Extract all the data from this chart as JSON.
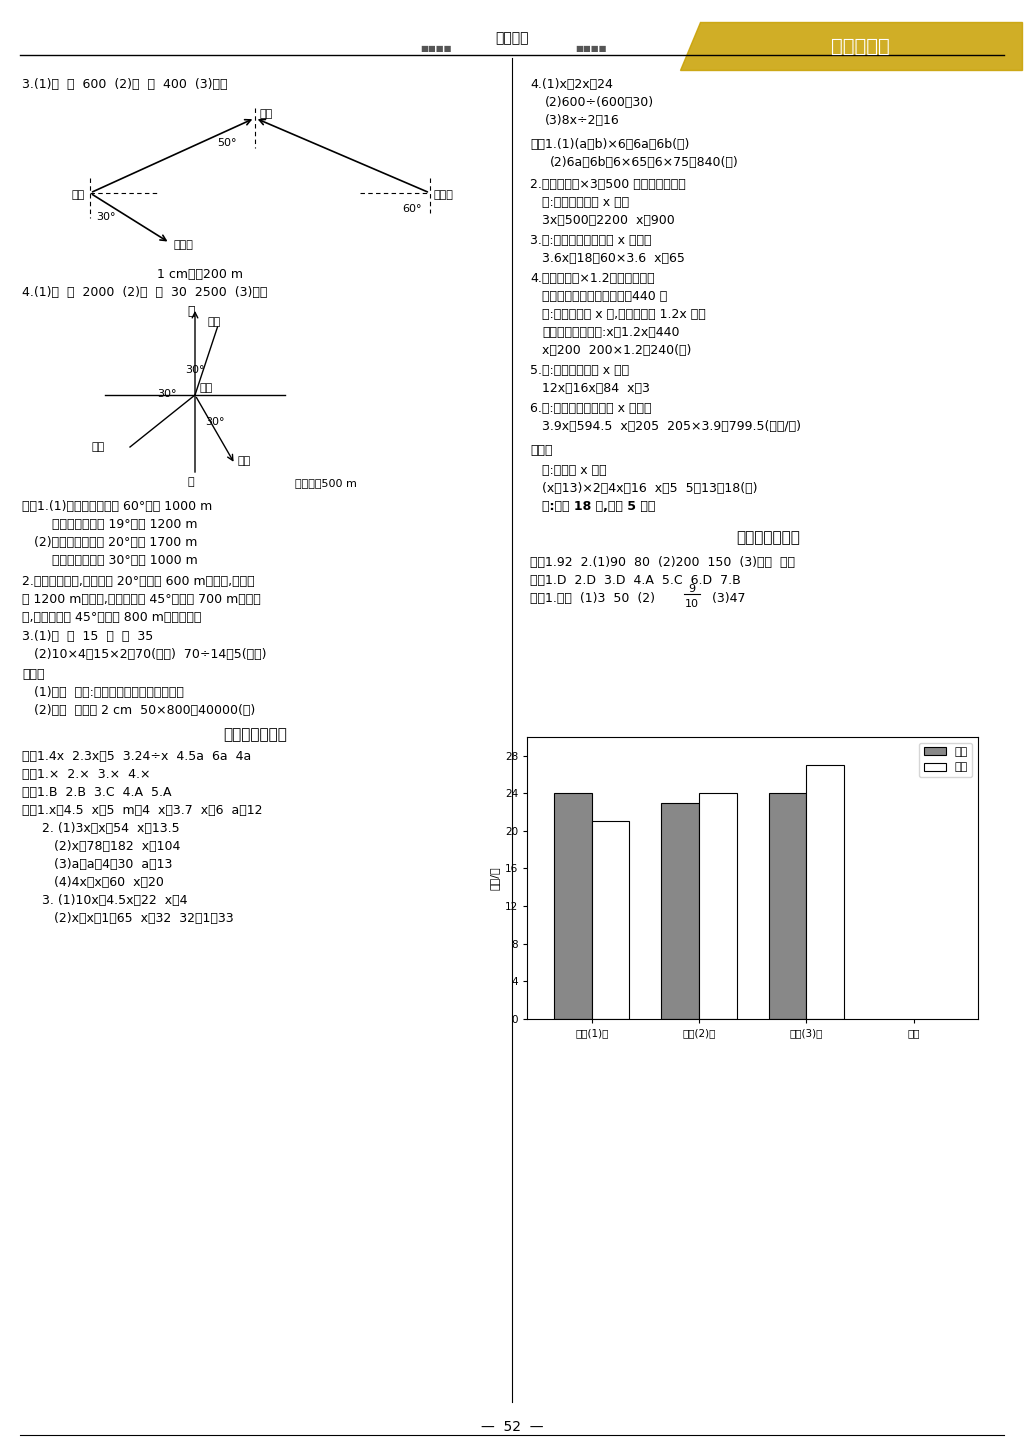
{
  "page_num": "52",
  "header_text": "北师大版",
  "header_logo": "金牌每课通",
  "bg_color": "#ffffff",
  "line_color": "#000000",
  "bar_chart": {
    "title_y": "人数/人",
    "x_labels": [
      "六年(1)班",
      "六年(2)班",
      "六年(3)班",
      "班级"
    ],
    "y_ticks": [
      0,
      4,
      8,
      12,
      16,
      20,
      24,
      28
    ],
    "male_values": [
      24,
      23,
      24
    ],
    "female_values": [
      21,
      24,
      27
    ],
    "male_color": "#888888",
    "female_color": "#ffffff",
    "legend_male": "男生",
    "legend_female": "女生"
  }
}
